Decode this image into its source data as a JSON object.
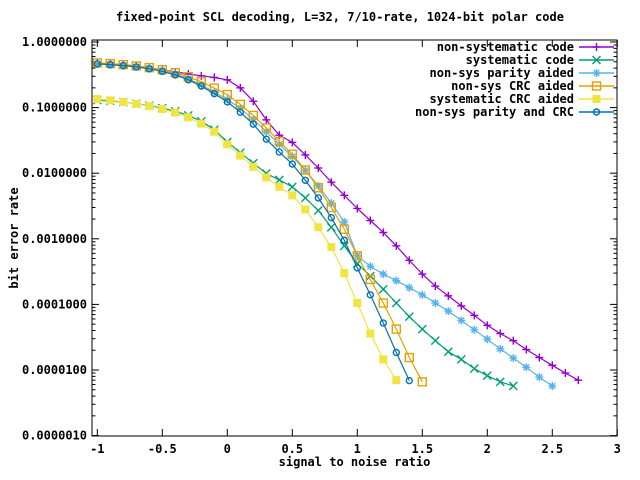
{
  "chart_data": {
    "type": "line",
    "title": "fixed-point SCL decoding, L=32, 7/10-rate, 1024-bit polar code",
    "xlabel": "signal to noise ratio",
    "ylabel": "bit error rate",
    "x_ticks": [
      -1,
      -0.5,
      0,
      0.5,
      1,
      1.5,
      2,
      2.5,
      3
    ],
    "x_tick_labels": [
      "-1",
      "-0.5",
      "0",
      "0.5",
      "1",
      "1.5",
      "2",
      "2.5",
      "3"
    ],
    "y_ticks": [
      1,
      0.1,
      0.01,
      0.001,
      0.0001,
      1e-05,
      1e-06
    ],
    "y_tick_labels": [
      "1.0000000",
      "0.1000000",
      "0.0100000",
      "0.0010000",
      "0.0001000",
      "0.0000100",
      "0.0000010"
    ],
    "y_scale": "log",
    "xlim": [
      -1,
      3
    ],
    "ylim": [
      1e-06,
      1
    ],
    "grid": false,
    "legend_position": "top-right-inside",
    "series": [
      {
        "name": "non-systematic code",
        "color": "#9400d3",
        "marker": "plus",
        "points": [
          [
            -1.0,
            0.475
          ],
          [
            -0.9,
            0.465
          ],
          [
            -0.8,
            0.45
          ],
          [
            -0.7,
            0.43
          ],
          [
            -0.6,
            0.405
          ],
          [
            -0.5,
            0.375
          ],
          [
            -0.4,
            0.35
          ],
          [
            -0.3,
            0.325
          ],
          [
            -0.2,
            0.305
          ],
          [
            -0.1,
            0.288
          ],
          [
            0.0,
            0.265
          ],
          [
            0.1,
            0.2
          ],
          [
            0.2,
            0.125
          ],
          [
            0.3,
            0.065
          ],
          [
            0.4,
            0.038
          ],
          [
            0.5,
            0.0295
          ],
          [
            0.6,
            0.019
          ],
          [
            0.7,
            0.012
          ],
          [
            0.8,
            0.0073
          ],
          [
            0.9,
            0.0046
          ],
          [
            1.0,
            0.0029
          ],
          [
            1.1,
            0.0019
          ],
          [
            1.2,
            0.00125
          ],
          [
            1.3,
            0.00078
          ],
          [
            1.4,
            0.00047
          ],
          [
            1.5,
            0.00029
          ],
          [
            1.6,
            0.00019
          ],
          [
            1.7,
            0.000135
          ],
          [
            1.8,
            9.5e-05
          ],
          [
            1.9,
            6.8e-05
          ],
          [
            2.0,
            4.8e-05
          ],
          [
            2.1,
            3.6e-05
          ],
          [
            2.2,
            2.8e-05
          ],
          [
            2.3,
            2.05e-05
          ],
          [
            2.4,
            1.55e-05
          ],
          [
            2.5,
            1.18e-05
          ],
          [
            2.6,
            9e-06
          ],
          [
            2.7,
            7e-06
          ]
        ]
      },
      {
        "name": "systematic code",
        "color": "#009e73",
        "marker": "cross",
        "points": [
          [
            -1.0,
            0.13
          ],
          [
            -0.9,
            0.126
          ],
          [
            -0.8,
            0.121
          ],
          [
            -0.7,
            0.115
          ],
          [
            -0.6,
            0.107
          ],
          [
            -0.5,
            0.098
          ],
          [
            -0.4,
            0.088
          ],
          [
            -0.3,
            0.076
          ],
          [
            -0.2,
            0.062
          ],
          [
            -0.1,
            0.046
          ],
          [
            0.0,
            0.03
          ],
          [
            0.1,
            0.0205
          ],
          [
            0.2,
            0.0142
          ],
          [
            0.3,
            0.0099
          ],
          [
            0.4,
            0.0079
          ],
          [
            0.5,
            0.0062
          ],
          [
            0.6,
            0.0042
          ],
          [
            0.7,
            0.0027
          ],
          [
            0.8,
            0.0015
          ],
          [
            0.9,
            0.00078
          ],
          [
            1.0,
            0.00042
          ],
          [
            1.1,
            0.00027
          ],
          [
            1.2,
            0.00017
          ],
          [
            1.3,
            0.000105
          ],
          [
            1.4,
            6.5e-05
          ],
          [
            1.5,
            4.2e-05
          ],
          [
            1.6,
            2.8e-05
          ],
          [
            1.7,
            1.9e-05
          ],
          [
            1.8,
            1.45e-05
          ],
          [
            1.9,
            1.05e-05
          ],
          [
            2.0,
            8.2e-06
          ],
          [
            2.1,
            6.6e-06
          ],
          [
            2.2,
            5.7e-06
          ]
        ]
      },
      {
        "name": "non-sys parity aided",
        "color": "#56b4e9",
        "marker": "asterisk",
        "points": [
          [
            -1.0,
            0.46
          ],
          [
            -0.9,
            0.45
          ],
          [
            -0.8,
            0.437
          ],
          [
            -0.7,
            0.42
          ],
          [
            -0.6,
            0.395
          ],
          [
            -0.5,
            0.365
          ],
          [
            -0.4,
            0.325
          ],
          [
            -0.3,
            0.275
          ],
          [
            -0.2,
            0.222
          ],
          [
            -0.1,
            0.172
          ],
          [
            0.0,
            0.133
          ],
          [
            0.1,
            0.098
          ],
          [
            0.2,
            0.066
          ],
          [
            0.3,
            0.043
          ],
          [
            0.4,
            0.0275
          ],
          [
            0.5,
            0.018
          ],
          [
            0.6,
            0.011
          ],
          [
            0.7,
            0.0064
          ],
          [
            0.8,
            0.0035
          ],
          [
            0.9,
            0.0018
          ],
          [
            1.0,
            0.00055
          ],
          [
            1.1,
            0.00038
          ],
          [
            1.2,
            0.00029
          ],
          [
            1.3,
            0.00023
          ],
          [
            1.4,
            0.00018
          ],
          [
            1.5,
            0.00014
          ],
          [
            1.6,
            0.000105
          ],
          [
            1.7,
            7.9e-05
          ],
          [
            1.8,
            5.7e-05
          ],
          [
            1.9,
            4.1e-05
          ],
          [
            2.0,
            2.95e-05
          ],
          [
            2.1,
            2.1e-05
          ],
          [
            2.2,
            1.52e-05
          ],
          [
            2.3,
            1.1e-05
          ],
          [
            2.4,
            7.8e-06
          ],
          [
            2.5,
            5.7e-06
          ]
        ]
      },
      {
        "name": "non-sys CRC aided",
        "color": "#e69f00",
        "marker": "square-open",
        "points": [
          [
            -1.0,
            0.48
          ],
          [
            -0.9,
            0.468
          ],
          [
            -0.8,
            0.452
          ],
          [
            -0.7,
            0.432
          ],
          [
            -0.6,
            0.407
          ],
          [
            -0.5,
            0.378
          ],
          [
            -0.4,
            0.34
          ],
          [
            -0.3,
            0.295
          ],
          [
            -0.2,
            0.247
          ],
          [
            -0.1,
            0.198
          ],
          [
            0.0,
            0.158
          ],
          [
            0.1,
            0.112
          ],
          [
            0.2,
            0.076
          ],
          [
            0.3,
            0.049
          ],
          [
            0.4,
            0.0305
          ],
          [
            0.5,
            0.0195
          ],
          [
            0.6,
            0.0112
          ],
          [
            0.7,
            0.006
          ],
          [
            0.8,
            0.003
          ],
          [
            0.9,
            0.0014
          ],
          [
            1.0,
            0.00055
          ],
          [
            1.1,
            0.00024
          ],
          [
            1.2,
            0.000105
          ],
          [
            1.3,
            4.2e-05
          ],
          [
            1.4,
            1.55e-05
          ],
          [
            1.5,
            6.6e-06
          ]
        ]
      },
      {
        "name": "systematic CRC aided",
        "color": "#f0e442",
        "marker": "square-filled",
        "points": [
          [
            -1.0,
            0.135
          ],
          [
            -0.9,
            0.129
          ],
          [
            -0.8,
            0.122
          ],
          [
            -0.7,
            0.114
          ],
          [
            -0.6,
            0.105
          ],
          [
            -0.5,
            0.095
          ],
          [
            -0.4,
            0.084
          ],
          [
            -0.3,
            0.071
          ],
          [
            -0.2,
            0.057
          ],
          [
            -0.1,
            0.043
          ],
          [
            0.0,
            0.0275
          ],
          [
            0.1,
            0.0185
          ],
          [
            0.2,
            0.0125
          ],
          [
            0.3,
            0.0086
          ],
          [
            0.4,
            0.0062
          ],
          [
            0.5,
            0.0046
          ],
          [
            0.6,
            0.0028
          ],
          [
            0.7,
            0.0015
          ],
          [
            0.8,
            0.00075
          ],
          [
            0.9,
            0.0003
          ],
          [
            1.0,
            0.000105
          ],
          [
            1.1,
            3.6e-05
          ],
          [
            1.2,
            1.45e-05
          ],
          [
            1.3,
            7e-06
          ]
        ]
      },
      {
        "name": "non-sys parity and CRC",
        "color": "#0072b2",
        "marker": "circle-open",
        "points": [
          [
            -1.0,
            0.465
          ],
          [
            -0.9,
            0.452
          ],
          [
            -0.8,
            0.437
          ],
          [
            -0.7,
            0.417
          ],
          [
            -0.6,
            0.39
          ],
          [
            -0.5,
            0.357
          ],
          [
            -0.4,
            0.315
          ],
          [
            -0.3,
            0.265
          ],
          [
            -0.2,
            0.213
          ],
          [
            -0.1,
            0.163
          ],
          [
            0.0,
            0.122
          ],
          [
            0.1,
            0.085
          ],
          [
            0.2,
            0.056
          ],
          [
            0.3,
            0.033
          ],
          [
            0.4,
            0.021
          ],
          [
            0.5,
            0.0138
          ],
          [
            0.6,
            0.0078
          ],
          [
            0.7,
            0.0042
          ],
          [
            0.8,
            0.0021
          ],
          [
            0.9,
            0.00095
          ],
          [
            1.0,
            0.00036
          ],
          [
            1.1,
            0.00014
          ],
          [
            1.2,
            5.2e-05
          ],
          [
            1.3,
            1.85e-05
          ],
          [
            1.4,
            6.9e-06
          ]
        ]
      }
    ]
  }
}
